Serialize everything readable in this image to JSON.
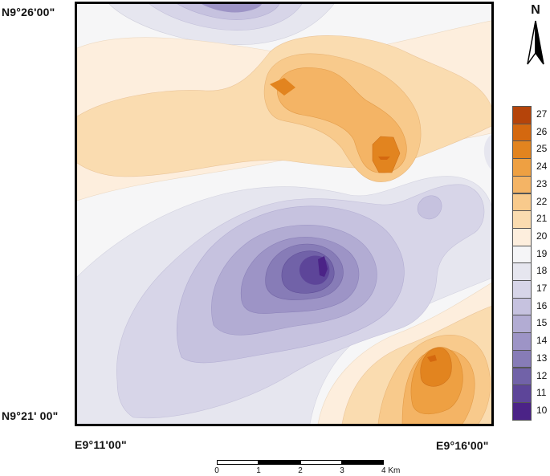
{
  "coords": {
    "top_left": "N9°26'00\"",
    "bottom_left": "N9°21' 00\"",
    "bottom_left_x": "E9°11'00\"",
    "bottom_right_x": "E9°16'00\""
  },
  "north": {
    "letter": "N"
  },
  "legend": {
    "items": [
      {
        "label": "27",
        "color": "#b5440a"
      },
      {
        "label": "26",
        "color": "#d4680f"
      },
      {
        "label": "25",
        "color": "#e2841f"
      },
      {
        "label": "24",
        "color": "#eea042"
      },
      {
        "label": "23",
        "color": "#f4b465"
      },
      {
        "label": "22",
        "color": "#f8ca8c"
      },
      {
        "label": "21",
        "color": "#fadcb0"
      },
      {
        "label": "20",
        "color": "#fdeedd"
      },
      {
        "label": "19",
        "color": "#f5f5f7"
      },
      {
        "label": "18",
        "color": "#e6e6ef"
      },
      {
        "label": "17",
        "color": "#d7d5e8"
      },
      {
        "label": "16",
        "color": "#c6c2df"
      },
      {
        "label": "15",
        "color": "#b2acd3"
      },
      {
        "label": "14",
        "color": "#9d94c6"
      },
      {
        "label": "13",
        "color": "#877cb7"
      },
      {
        "label": "12",
        "color": "#7162a8"
      },
      {
        "label": "11",
        "color": "#5d4599"
      },
      {
        "label": "10",
        "color": "#4b2387"
      }
    ]
  },
  "scale": {
    "labels": [
      "0",
      "1",
      "2",
      "3",
      "4 Km"
    ]
  }
}
